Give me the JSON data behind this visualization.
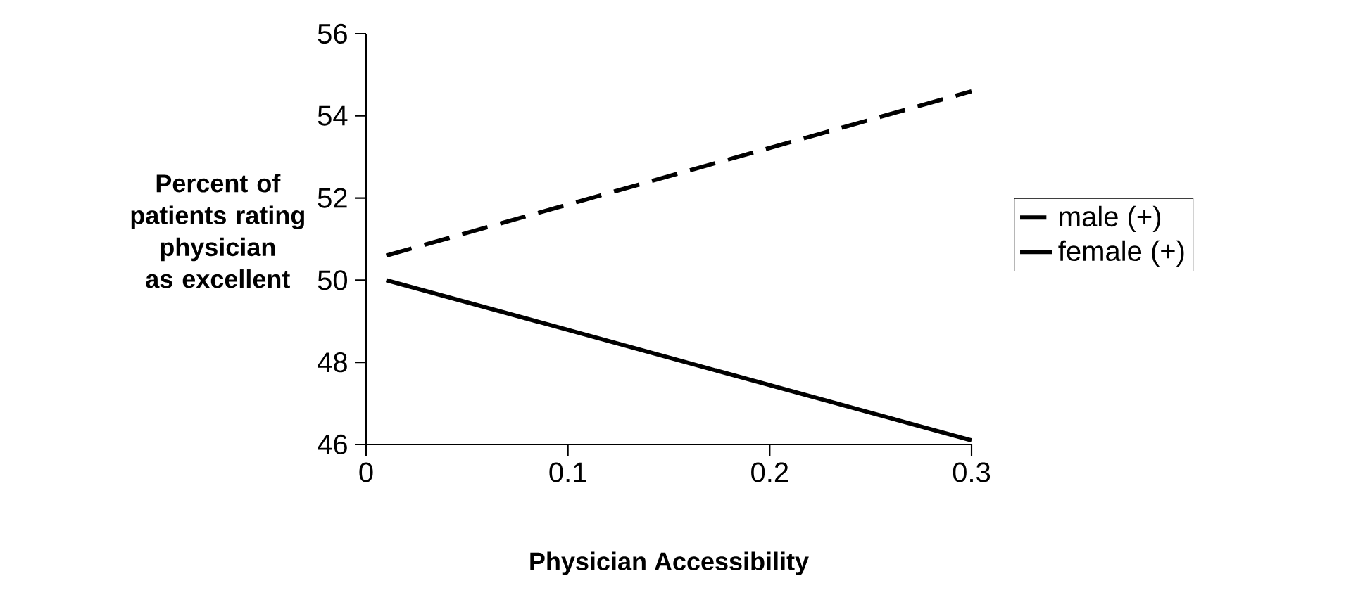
{
  "chart_data": {
    "type": "line",
    "xlabel": "Physician Accessibility",
    "ylabel": "Percent of patients rating physician as excellent",
    "xlim": [
      0,
      0.3
    ],
    "ylim": [
      46,
      56
    ],
    "xticks": [
      0,
      0.1,
      0.2,
      0.3
    ],
    "yticks": [
      46,
      48,
      50,
      52,
      54,
      56
    ],
    "x": [
      0.01,
      0.3
    ],
    "series": [
      {
        "name": "male (+)",
        "color": "#000000",
        "line_style": "dashed",
        "values": [
          50.6,
          54.6
        ]
      },
      {
        "name": "female (+)",
        "color": "#000000",
        "line_style": "solid",
        "values": [
          50.0,
          46.1
        ]
      }
    ],
    "legend": "right",
    "marker": "none",
    "grid": false
  }
}
